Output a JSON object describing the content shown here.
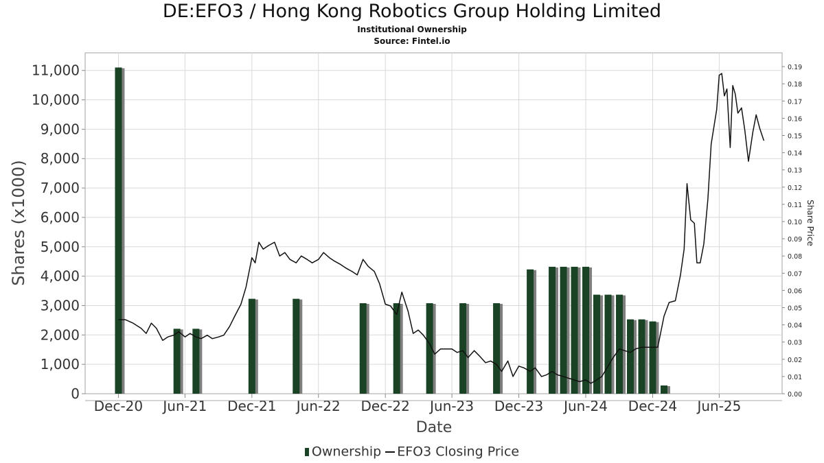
{
  "chart_data": {
    "type": "bar+line",
    "title": "DE:EFO3 / Hong Kong Robotics Group Holding Limited",
    "subtitle": "Institutional Ownership",
    "source": "Source: Fintel.io",
    "xlabel": "Date",
    "ylabel": "Shares (x1000)",
    "y2label": "Share Price",
    "x_ticks": [
      "Dec-20",
      "Jun-21",
      "Dec-21",
      "Jun-22",
      "Dec-22",
      "Jun-23",
      "Dec-23",
      "Jun-24",
      "Dec-24",
      "Jun-25"
    ],
    "ylim": [
      0,
      11600
    ],
    "y_ticks": [
      0,
      1000,
      2000,
      3000,
      4000,
      5000,
      6000,
      7000,
      8000,
      9000,
      10000,
      11000
    ],
    "y_tick_labels": [
      "0",
      "1,000",
      "2,000",
      "3,000",
      "4,000",
      "5,000",
      "6,000",
      "7,000",
      "8,000",
      "9,000",
      "10,000",
      "11,000"
    ],
    "y2lim": [
      0,
      0.198
    ],
    "y2_ticks": [
      0,
      0.01,
      0.02,
      0.03,
      0.04,
      0.05,
      0.06,
      0.07,
      0.08,
      0.09,
      0.1,
      0.11,
      0.12,
      0.13,
      0.14,
      0.15,
      0.16,
      0.17,
      0.18,
      0.19
    ],
    "y2_tick_labels": [
      "0.00",
      "0.01",
      "0.02",
      "0.03",
      "0.04",
      "0.05",
      "0.06",
      "0.07",
      "0.08",
      "0.09",
      "0.10",
      "0.11",
      "0.12",
      "0.13",
      "0.14",
      "0.15",
      "0.16",
      "0.17",
      "0.18",
      "0.19"
    ],
    "grid": true,
    "legend_position": "bottom-center",
    "colors": {
      "bar": "#1a4325",
      "bar_shadow": "#7f7f7f",
      "line": "#111111",
      "grid": "#d9d9d9"
    },
    "series": [
      {
        "name": "Ownership",
        "type": "bar",
        "points": [
          {
            "x": "2020-12-01",
            "y": 11100
          },
          {
            "x": "2021-05-10",
            "y": 2210
          },
          {
            "x": "2021-07-01",
            "y": 2210
          },
          {
            "x": "2021-12-01",
            "y": 3230
          },
          {
            "x": "2022-04-01",
            "y": 3230
          },
          {
            "x": "2022-10-01",
            "y": 3080
          },
          {
            "x": "2023-01-01",
            "y": 3080
          },
          {
            "x": "2023-04-01",
            "y": 3080
          },
          {
            "x": "2023-07-01",
            "y": 3080
          },
          {
            "x": "2023-10-01",
            "y": 3080
          },
          {
            "x": "2024-01-01",
            "y": 4230
          },
          {
            "x": "2024-03-01",
            "y": 4320
          },
          {
            "x": "2024-04-01",
            "y": 4320
          },
          {
            "x": "2024-05-01",
            "y": 4320
          },
          {
            "x": "2024-06-01",
            "y": 4320
          },
          {
            "x": "2024-07-01",
            "y": 3370
          },
          {
            "x": "2024-08-01",
            "y": 3370
          },
          {
            "x": "2024-09-01",
            "y": 3370
          },
          {
            "x": "2024-10-01",
            "y": 2530
          },
          {
            "x": "2024-11-01",
            "y": 2530
          },
          {
            "x": "2024-12-01",
            "y": 2460
          },
          {
            "x": "2025-01-01",
            "y": 280
          }
        ]
      },
      {
        "name": "EFO3 Closing Price",
        "type": "line",
        "points": [
          [
            "2020-12-01",
            0.043
          ],
          [
            "2020-12-20",
            0.043
          ],
          [
            "2021-01-10",
            0.041
          ],
          [
            "2021-02-01",
            0.038
          ],
          [
            "2021-02-15",
            0.035
          ],
          [
            "2021-03-01",
            0.041
          ],
          [
            "2021-03-15",
            0.038
          ],
          [
            "2021-04-01",
            0.031
          ],
          [
            "2021-04-15",
            0.033
          ],
          [
            "2021-05-01",
            0.034
          ],
          [
            "2021-05-15",
            0.036
          ],
          [
            "2021-06-01",
            0.033
          ],
          [
            "2021-06-15",
            0.035
          ],
          [
            "2021-07-01",
            0.033
          ],
          [
            "2021-07-15",
            0.032
          ],
          [
            "2021-08-01",
            0.034
          ],
          [
            "2021-08-15",
            0.032
          ],
          [
            "2021-09-01",
            0.033
          ],
          [
            "2021-09-15",
            0.034
          ],
          [
            "2021-10-01",
            0.039
          ],
          [
            "2021-10-15",
            0.045
          ],
          [
            "2021-11-01",
            0.052
          ],
          [
            "2021-11-15",
            0.062
          ],
          [
            "2021-12-01",
            0.079
          ],
          [
            "2021-12-10",
            0.076
          ],
          [
            "2021-12-20",
            0.088
          ],
          [
            "2022-01-01",
            0.084
          ],
          [
            "2022-01-15",
            0.086
          ],
          [
            "2022-02-01",
            0.088
          ],
          [
            "2022-02-15",
            0.08
          ],
          [
            "2022-03-01",
            0.082
          ],
          [
            "2022-03-15",
            0.078
          ],
          [
            "2022-04-01",
            0.076
          ],
          [
            "2022-04-15",
            0.08
          ],
          [
            "2022-05-01",
            0.078
          ],
          [
            "2022-05-15",
            0.076
          ],
          [
            "2022-06-01",
            0.078
          ],
          [
            "2022-06-15",
            0.082
          ],
          [
            "2022-07-01",
            0.079
          ],
          [
            "2022-07-15",
            0.077
          ],
          [
            "2022-08-01",
            0.075
          ],
          [
            "2022-08-15",
            0.073
          ],
          [
            "2022-09-01",
            0.071
          ],
          [
            "2022-09-15",
            0.069
          ],
          [
            "2022-10-01",
            0.078
          ],
          [
            "2022-10-15",
            0.074
          ],
          [
            "2022-11-01",
            0.071
          ],
          [
            "2022-11-15",
            0.064
          ],
          [
            "2022-12-01",
            0.052
          ],
          [
            "2022-12-15",
            0.051
          ],
          [
            "2023-01-01",
            0.046
          ],
          [
            "2023-01-15",
            0.059
          ],
          [
            "2023-02-01",
            0.048
          ],
          [
            "2023-02-15",
            0.035
          ],
          [
            "2023-03-01",
            0.037
          ],
          [
            "2023-03-15",
            0.034
          ],
          [
            "2023-04-01",
            0.029
          ],
          [
            "2023-04-15",
            0.023
          ],
          [
            "2023-05-01",
            0.026
          ],
          [
            "2023-05-15",
            0.026
          ],
          [
            "2023-06-01",
            0.026
          ],
          [
            "2023-06-15",
            0.024
          ],
          [
            "2023-07-01",
            0.025
          ],
          [
            "2023-07-15",
            0.021
          ],
          [
            "2023-08-01",
            0.025
          ],
          [
            "2023-08-15",
            0.022
          ],
          [
            "2023-09-01",
            0.018
          ],
          [
            "2023-09-15",
            0.019
          ],
          [
            "2023-10-01",
            0.017
          ],
          [
            "2023-10-15",
            0.013
          ],
          [
            "2023-11-01",
            0.019
          ],
          [
            "2023-11-15",
            0.01
          ],
          [
            "2023-12-01",
            0.016
          ],
          [
            "2023-12-15",
            0.015
          ],
          [
            "2024-01-01",
            0.013
          ],
          [
            "2024-01-15",
            0.015
          ],
          [
            "2024-02-01",
            0.01
          ],
          [
            "2024-02-15",
            0.011
          ],
          [
            "2024-03-01",
            0.013
          ],
          [
            "2024-03-15",
            0.011
          ],
          [
            "2024-04-01",
            0.01
          ],
          [
            "2024-04-15",
            0.009
          ],
          [
            "2024-05-01",
            0.008
          ],
          [
            "2024-05-15",
            0.007
          ],
          [
            "2024-06-01",
            0.008
          ],
          [
            "2024-06-15",
            0.006
          ],
          [
            "2024-07-01",
            0.008
          ],
          [
            "2024-07-15",
            0.01
          ],
          [
            "2024-08-01",
            0.016
          ],
          [
            "2024-08-15",
            0.021
          ],
          [
            "2024-09-01",
            0.026
          ],
          [
            "2024-09-15",
            0.025
          ],
          [
            "2024-10-01",
            0.024
          ],
          [
            "2024-10-15",
            0.026
          ],
          [
            "2024-11-01",
            0.027
          ],
          [
            "2024-11-15",
            0.027
          ],
          [
            "2024-12-01",
            0.027
          ],
          [
            "2024-12-15",
            0.027
          ],
          [
            "2025-01-01",
            0.045
          ],
          [
            "2025-01-15",
            0.053
          ],
          [
            "2025-02-01",
            0.054
          ],
          [
            "2025-02-15",
            0.069
          ],
          [
            "2025-02-25",
            0.084
          ],
          [
            "2025-03-05",
            0.122
          ],
          [
            "2025-03-15",
            0.101
          ],
          [
            "2025-03-25",
            0.099
          ],
          [
            "2025-04-01",
            0.076
          ],
          [
            "2025-04-10",
            0.076
          ],
          [
            "2025-04-20",
            0.087
          ],
          [
            "2025-05-01",
            0.113
          ],
          [
            "2025-05-10",
            0.145
          ],
          [
            "2025-05-25",
            0.165
          ],
          [
            "2025-06-01",
            0.185
          ],
          [
            "2025-06-08",
            0.186
          ],
          [
            "2025-06-15",
            0.173
          ],
          [
            "2025-06-22",
            0.177
          ],
          [
            "2025-07-01",
            0.143
          ],
          [
            "2025-07-08",
            0.179
          ],
          [
            "2025-07-15",
            0.174
          ],
          [
            "2025-07-22",
            0.163
          ],
          [
            "2025-08-01",
            0.166
          ],
          [
            "2025-08-10",
            0.153
          ],
          [
            "2025-08-20",
            0.135
          ],
          [
            "2025-09-01",
            0.152
          ],
          [
            "2025-09-10",
            0.162
          ],
          [
            "2025-09-20",
            0.154
          ],
          [
            "2025-10-01",
            0.147
          ]
        ]
      }
    ]
  }
}
